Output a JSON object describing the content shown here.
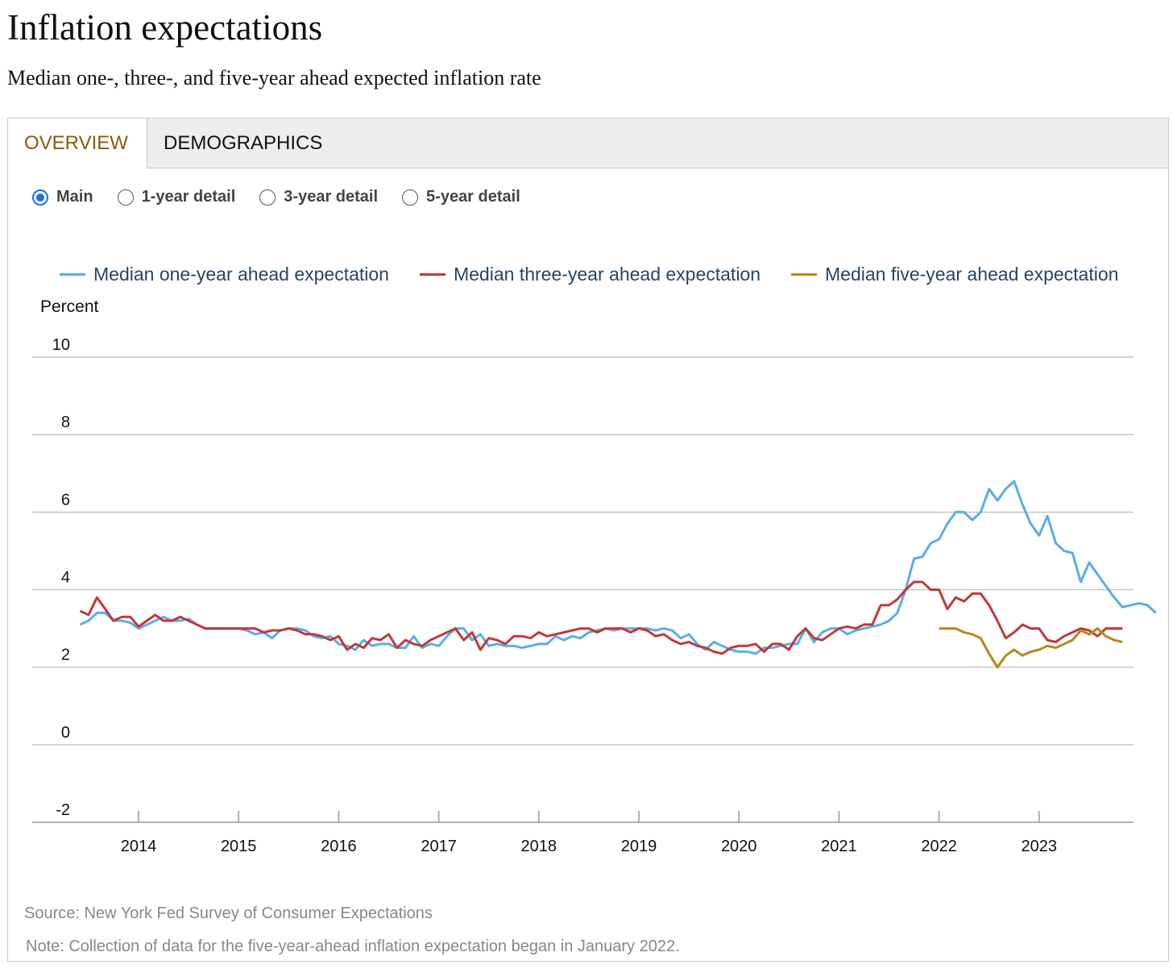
{
  "header": {
    "title": "Inflation expectations",
    "subtitle": "Median one-, three-, and five-year ahead expected inflation rate"
  },
  "tabs": [
    {
      "label": "OVERVIEW",
      "active": true
    },
    {
      "label": "DEMOGRAPHICS",
      "active": false
    }
  ],
  "radios": [
    {
      "label": "Main",
      "checked": true
    },
    {
      "label": "1-year detail",
      "checked": false
    },
    {
      "label": "3-year detail",
      "checked": false
    },
    {
      "label": "5-year detail",
      "checked": false
    }
  ],
  "colors": {
    "one": "#5aaee3",
    "three": "#c0393b",
    "five": "#b8861e",
    "accent_tab": "#8b5a0a",
    "radio": "#1a73e8"
  },
  "footer": {
    "source": "Source: New York Fed Survey of Consumer Expectations",
    "note": "Note: Collection of data for the five-year-ahead inflation expectation began in January 2022."
  },
  "chart_data": {
    "type": "line",
    "ylabel": "Percent",
    "ylim": [
      -2,
      10
    ],
    "yticks": [
      "10",
      "8",
      "6",
      "4",
      "2",
      "0",
      "-2"
    ],
    "xticks": [
      "2014",
      "2015",
      "2016",
      "2017",
      "2018",
      "2019",
      "2020",
      "2021",
      "2022",
      "2023"
    ],
    "frequency": "monthly",
    "legend_placement": "top",
    "series": [
      {
        "name": "Median one-year ahead expectation",
        "start": "2013-06",
        "values": [
          3.1,
          3.2,
          3.4,
          3.4,
          3.2,
          3.2,
          3.15,
          3.0,
          3.1,
          3.2,
          3.3,
          3.2,
          3.2,
          3.25,
          3.1,
          3.0,
          3.0,
          3.0,
          3.0,
          3.0,
          2.95,
          2.85,
          2.9,
          2.75,
          2.95,
          3.0,
          3.0,
          2.95,
          2.8,
          2.75,
          2.8,
          2.6,
          2.55,
          2.45,
          2.7,
          2.55,
          2.6,
          2.6,
          2.5,
          2.5,
          2.8,
          2.5,
          2.6,
          2.55,
          2.8,
          3.0,
          3.0,
          2.7,
          2.85,
          2.55,
          2.6,
          2.55,
          2.55,
          2.5,
          2.55,
          2.6,
          2.6,
          2.8,
          2.7,
          2.8,
          2.75,
          2.9,
          2.95,
          3.0,
          2.95,
          3.0,
          3.0,
          3.0,
          3.0,
          2.95,
          3.0,
          2.95,
          2.75,
          2.85,
          2.6,
          2.45,
          2.65,
          2.55,
          2.45,
          2.4,
          2.4,
          2.35,
          2.5,
          2.5,
          2.55,
          2.6,
          2.6,
          3.0,
          2.65,
          2.9,
          3.0,
          3.0,
          2.85,
          2.95,
          3.0,
          3.05,
          3.1,
          3.2,
          3.4,
          4.0,
          4.8,
          4.85,
          5.2,
          5.3,
          5.7,
          6.0,
          6.0,
          5.8,
          6.0,
          6.6,
          6.3,
          6.6,
          6.8,
          6.2,
          5.7,
          5.4,
          5.9,
          5.2,
          5.0,
          4.95,
          4.2,
          4.7,
          4.4,
          4.1,
          3.8,
          3.55,
          3.6,
          3.65,
          3.6,
          3.4
        ]
      },
      {
        "name": "Median three-year ahead expectation",
        "start": "2013-06",
        "values": [
          3.45,
          3.35,
          3.8,
          3.5,
          3.2,
          3.3,
          3.3,
          3.05,
          3.2,
          3.35,
          3.2,
          3.2,
          3.3,
          3.2,
          3.1,
          3.0,
          3.0,
          3.0,
          3.0,
          3.0,
          3.0,
          3.0,
          2.9,
          2.95,
          2.95,
          3.0,
          2.95,
          2.85,
          2.85,
          2.8,
          2.7,
          2.8,
          2.45,
          2.6,
          2.5,
          2.75,
          2.7,
          2.85,
          2.5,
          2.7,
          2.6,
          2.55,
          2.7,
          2.8,
          2.9,
          3.0,
          2.7,
          2.9,
          2.45,
          2.75,
          2.7,
          2.6,
          2.8,
          2.8,
          2.75,
          2.9,
          2.8,
          2.85,
          2.9,
          2.95,
          3.0,
          3.0,
          2.9,
          3.0,
          3.0,
          3.0,
          2.9,
          3.0,
          2.95,
          2.8,
          2.85,
          2.7,
          2.6,
          2.65,
          2.55,
          2.5,
          2.4,
          2.35,
          2.5,
          2.55,
          2.55,
          2.6,
          2.4,
          2.6,
          2.6,
          2.45,
          2.8,
          3.0,
          2.75,
          2.7,
          2.85,
          3.0,
          3.05,
          3.0,
          3.1,
          3.1,
          3.6,
          3.6,
          3.75,
          4.0,
          4.2,
          4.2,
          4.0,
          4.0,
          3.5,
          3.8,
          3.7,
          3.9,
          3.9,
          3.6,
          3.2,
          2.75,
          2.9,
          3.1,
          3.0,
          3.0,
          2.7,
          2.65,
          2.8,
          2.9,
          3.0,
          2.95,
          2.8,
          3.0,
          3.0,
          3.0
        ]
      },
      {
        "name": "Median five-year ahead expectation",
        "start": "2022-01",
        "values": [
          3.0,
          3.0,
          3.0,
          2.9,
          2.85,
          2.75,
          2.35,
          2.0,
          2.3,
          2.45,
          2.3,
          2.4,
          2.45,
          2.55,
          2.5,
          2.6,
          2.7,
          2.95,
          2.85,
          3.0,
          2.8,
          2.7,
          2.65
        ]
      }
    ]
  }
}
